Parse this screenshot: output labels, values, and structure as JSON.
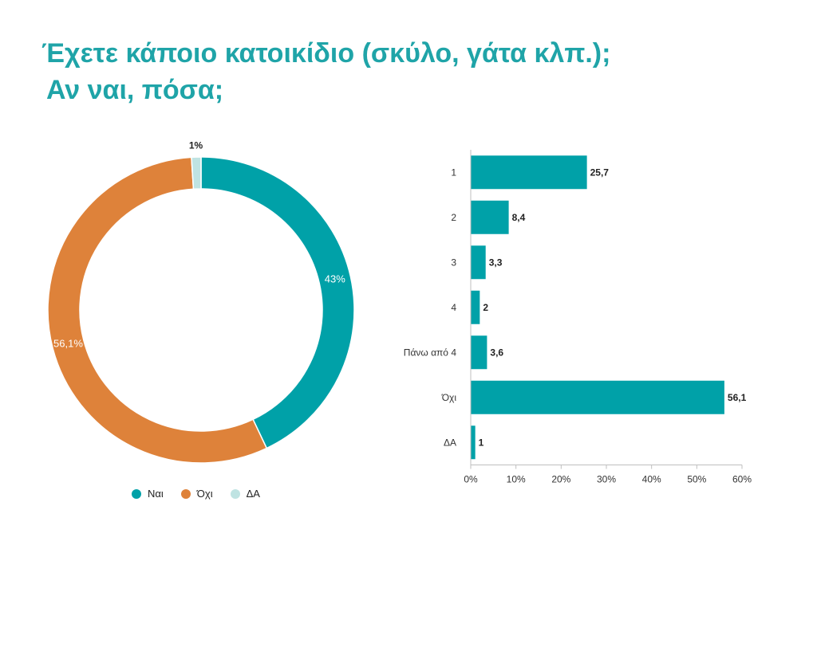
{
  "title_line1": "Έχετε κάποιο κατοικίδιο (σκύλο, γάτα κλπ.);",
  "title_line2": "Αν ναι, πόσα;",
  "colors": {
    "teal": "#00a1a8",
    "orange": "#de823a",
    "lightteal": "#bfe3e2",
    "title": "#1fa4a8"
  },
  "chart_data": [
    {
      "type": "pie",
      "donut": true,
      "slices": [
        {
          "label": "Ναι",
          "value": 43,
          "display": "43%",
          "color": "#00a1a8"
        },
        {
          "label": "Όχι",
          "value": 56.1,
          "display": "56,1%",
          "color": "#de823a"
        },
        {
          "label": "ΔΑ",
          "value": 1,
          "display": "1%",
          "color": "#bfe3e2"
        }
      ],
      "legend": [
        "Ναι",
        "Όχι",
        "ΔΑ"
      ],
      "legend_position": "bottom"
    },
    {
      "type": "bar",
      "orientation": "horizontal",
      "categories": [
        "1",
        "2",
        "3",
        "4",
        "Πάνω από 4",
        "Όχι",
        "ΔΑ"
      ],
      "values": [
        25.7,
        8.4,
        3.3,
        2,
        3.6,
        56.1,
        1
      ],
      "value_labels": [
        "25,7",
        "8,4",
        "3,3",
        "2",
        "3,6",
        "56,1",
        "1"
      ],
      "xlim": [
        0,
        60
      ],
      "xticks": [
        "0%",
        "10%",
        "20%",
        "30%",
        "40%",
        "50%",
        "60%"
      ],
      "color": "#00a1a8",
      "grid": false
    }
  ]
}
